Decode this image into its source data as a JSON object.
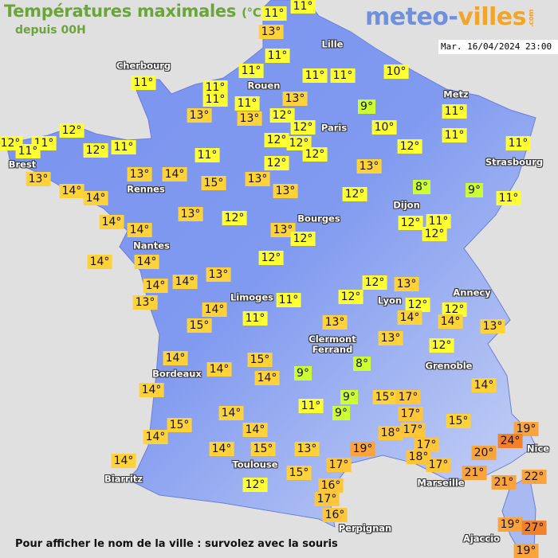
{
  "header": {
    "title": "Températures maximales",
    "unit": "(°C)",
    "subtitle": "depuis 00H",
    "logo": {
      "part1": "meteo-",
      "part2": "villes",
      "part3": ".com"
    },
    "datetime": "Mar. 16/04/2024 23:00"
  },
  "colors": {
    "title_green": "#6aa53a",
    "land": "#7b93ee",
    "sea": "#e1e0e1",
    "temp_8_9": "#ccff33",
    "temp_10_12": "#ffff33",
    "temp_13_15": "#ffd23a",
    "temp_16_18": "#ffc63a",
    "temp_19_22": "#fba43c",
    "temp_24_27": "#f3802a"
  },
  "cities": [
    "Cherbourg",
    "Lille",
    "Rouen",
    "Paris",
    "Metz",
    "Strasbourg",
    "Brest",
    "Rennes",
    "Dijon",
    "Nantes",
    "Bourges",
    "Limoges",
    "Annecy",
    "Lyon",
    "Clermont Ferrand",
    "Grenoble",
    "Bordeaux",
    "Toulouse",
    "Biarritz",
    "Marseille",
    "Perpignan",
    "Nice",
    "Ajaccio"
  ],
  "temperatures": [
    "11°",
    "11°",
    "13°",
    "11°",
    "11°",
    "11°",
    "11°",
    "11°",
    "11°",
    "13°",
    "13°",
    "11°",
    "11°",
    "10°",
    "13°",
    "9°",
    "12°",
    "12°",
    "10°",
    "11°",
    "11°",
    "12°",
    "12°",
    "12°",
    "12°",
    "11°",
    "12°",
    "12°",
    "11°",
    "11°",
    "12°",
    "11°",
    "11°",
    "12°",
    "13°",
    "13°",
    "14°",
    "14°",
    "13°",
    "14°",
    "15°",
    "13°",
    "13°",
    "12°",
    "8°",
    "9°",
    "11°",
    "14°",
    "14°",
    "13°",
    "12°",
    "13°",
    "12°",
    "12°",
    "11°",
    "12°",
    "14°",
    "14°",
    "13°",
    "12°",
    "14°",
    "14°",
    "13°",
    "12°",
    "13°",
    "12°",
    "11°",
    "12°",
    "12°",
    "14°",
    "14°",
    "14°",
    "15°",
    "11°",
    "13°",
    "13°",
    "13°",
    "12°",
    "8°",
    "14°",
    "14°",
    "15°",
    "14°",
    "9°",
    "14°",
    "14°",
    "9°",
    "9°",
    "11°",
    "15°",
    "17°",
    "17°",
    "15°",
    "14°",
    "15°",
    "14°",
    "18°",
    "17°",
    "19°",
    "24°",
    "14°",
    "14°",
    "15°",
    "13°",
    "19°",
    "17°",
    "20°",
    "17°",
    "18°",
    "17°",
    "14°",
    "15°",
    "21°",
    "21°",
    "22°",
    "12°",
    "16°",
    "17°",
    "16°",
    "19°",
    "27°",
    "19°"
  ],
  "footer": "Pour afficher le nom de la ville : survolez avec la souris"
}
